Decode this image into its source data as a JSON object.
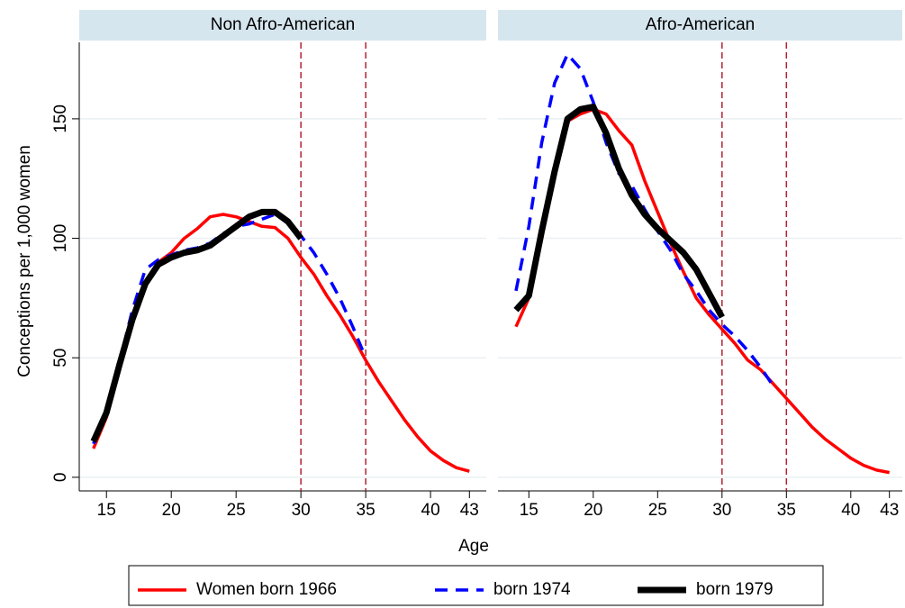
{
  "chart_data": [
    {
      "type": "line",
      "title": "Non Afro-American",
      "y_label": "Conceptions per 1,000 women",
      "x_label": "Age",
      "x": [
        14,
        15,
        16,
        17,
        18,
        19,
        20,
        21,
        22,
        23,
        24,
        25,
        26,
        27,
        28,
        29,
        30,
        31,
        32,
        33,
        34,
        35,
        36,
        37,
        38,
        39,
        40,
        41,
        42,
        43
      ],
      "series": [
        {
          "name": "Women born 1966",
          "color": "#ff0000",
          "line_style": "solid",
          "values": [
            12,
            25,
            45,
            65,
            82,
            90,
            94,
            100,
            104,
            109,
            110,
            109,
            107,
            105,
            104.5,
            100,
            92,
            85,
            76,
            68,
            59,
            49,
            40,
            32,
            24,
            17,
            11,
            7,
            4,
            2.5
          ]
        },
        {
          "name": "born 1974",
          "color": "#0000ff",
          "line_style": "dashed",
          "values": [
            14,
            28,
            48,
            70,
            87,
            91,
            93,
            95,
            96,
            98,
            102,
            105,
            106,
            108,
            110,
            107,
            101,
            94,
            85,
            75,
            63,
            50,
            null,
            null,
            null,
            null,
            null,
            null,
            null,
            null
          ]
        },
        {
          "name": "born 1979",
          "color": "#000000",
          "line_style": "solid",
          "values": [
            15,
            27,
            47,
            66,
            81,
            89,
            92,
            94,
            95,
            97,
            101,
            105,
            109,
            111,
            111,
            107,
            100,
            null,
            null,
            null,
            null,
            null,
            null,
            null,
            null,
            null,
            null,
            null,
            null,
            null
          ]
        }
      ],
      "xlim": [
        12.9,
        44.3
      ],
      "ylim": [
        -5.7,
        182
      ],
      "xticks": [
        15,
        20,
        25,
        30,
        35,
        40,
        43
      ],
      "yticks": [
        0,
        50,
        100,
        150
      ],
      "vlines": [
        30,
        35
      ],
      "vline_color": "#b22234",
      "grid": true
    },
    {
      "type": "line",
      "title": "Afro-American",
      "x": [
        14,
        15,
        16,
        17,
        18,
        19,
        20,
        21,
        22,
        23,
        24,
        25,
        26,
        27,
        28,
        29,
        30,
        31,
        32,
        33,
        34,
        35,
        36,
        37,
        38,
        39,
        40,
        41,
        42,
        43
      ],
      "series": [
        {
          "name": "Women born 1966",
          "color": "#ff0000",
          "line_style": "solid",
          "values": [
            63,
            75,
            100,
            128,
            149,
            152,
            154,
            152,
            145,
            139,
            124,
            111,
            98,
            86,
            75,
            68,
            62,
            56,
            49,
            45,
            39,
            33,
            27,
            21,
            16,
            12,
            8,
            5,
            3,
            2
          ]
        },
        {
          "name": "born 1974",
          "color": "#0000ff",
          "line_style": "dashed",
          "values": [
            78,
            105,
            140,
            165,
            177,
            171,
            157,
            140,
            127,
            122,
            112,
            103,
            95,
            85,
            78,
            70,
            64,
            59,
            53,
            46,
            38,
            null,
            null,
            null,
            null,
            null,
            null,
            null,
            null,
            null
          ]
        },
        {
          "name": "born 1979",
          "color": "#000000",
          "line_style": "solid",
          "values": [
            70,
            76,
            103,
            128,
            150,
            154,
            155,
            144,
            129,
            118,
            110,
            104,
            99,
            94,
            87,
            77,
            67,
            null,
            null,
            null,
            null,
            null,
            null,
            null,
            null,
            null,
            null,
            null,
            null,
            null
          ]
        }
      ],
      "xlim": [
        12.6,
        44.0
      ],
      "ylim": [
        -5.7,
        182
      ],
      "xticks": [
        15,
        20,
        25,
        30,
        35,
        40,
        43
      ],
      "yticks": [
        0,
        50,
        100,
        150
      ],
      "vlines": [
        30,
        35
      ],
      "vline_color": "#b22234",
      "grid": true
    }
  ]
}
